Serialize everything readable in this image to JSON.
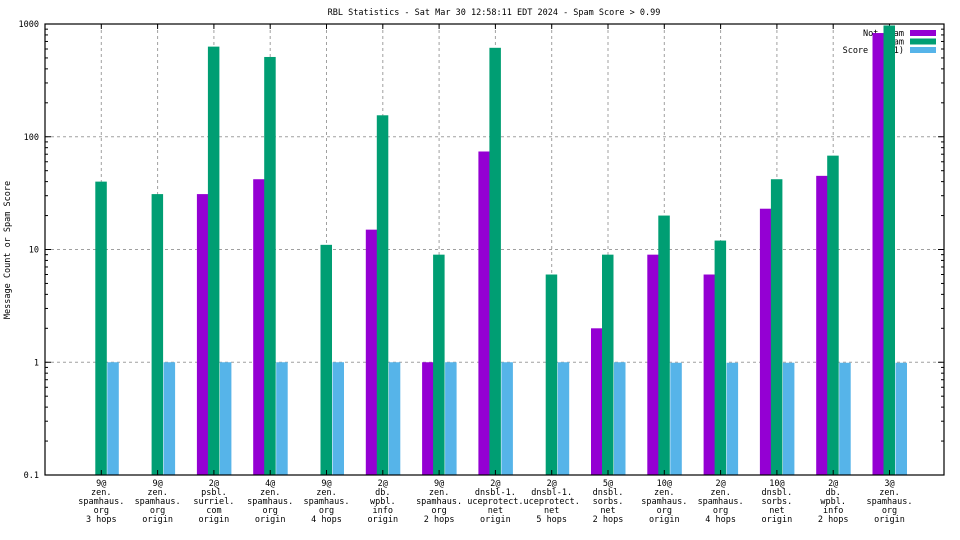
{
  "chart_data": {
    "type": "bar",
    "title": "RBL Statistics - Sat Mar 30 12:58:11 EDT 2024 - Spam Score > 0.99",
    "xlabel": "",
    "ylabel": "Message Count or Spam Score",
    "yscale": "log",
    "ylim": [
      0.1,
      1000
    ],
    "yticks": [
      {
        "value": 0.1,
        "label": "0.1"
      },
      {
        "value": 1,
        "label": "1"
      },
      {
        "value": 10,
        "label": "10"
      },
      {
        "value": 100,
        "label": "100"
      },
      {
        "value": 1000,
        "label": "1000"
      }
    ],
    "grid": true,
    "legend_position": "top-right",
    "categories": [
      [
        "9@",
        "zen.",
        "spamhaus.",
        "org",
        "3 hops"
      ],
      [
        "9@",
        "zen.",
        "spamhaus.",
        "org",
        "origin"
      ],
      [
        "2@",
        "psbl.",
        "surriel.",
        "com",
        "origin"
      ],
      [
        "4@",
        "zen.",
        "spamhaus.",
        "org",
        "origin"
      ],
      [
        "9@",
        "zen.",
        "spamhaus.",
        "org",
        "4 hops"
      ],
      [
        "2@",
        "db.",
        "wpbl.",
        "info",
        "origin"
      ],
      [
        "9@",
        "zen.",
        "spamhaus.",
        "org",
        "2 hops"
      ],
      [
        "2@",
        "dnsbl-1.",
        "uceprotect.",
        "net",
        "origin"
      ],
      [
        "2@",
        "dnsbl-1.",
        "uceprotect.",
        "net",
        "5 hops"
      ],
      [
        "5@",
        "dnsbl.",
        "sorbs.",
        "net",
        "2 hops"
      ],
      [
        "10@",
        "zen.",
        "spamhaus.",
        "org",
        "origin"
      ],
      [
        "2@",
        "zen.",
        "spamhaus.",
        "org",
        "4 hops"
      ],
      [
        "10@",
        "dnsbl.",
        "sorbs.",
        "net",
        "origin"
      ],
      [
        "2@",
        "db.",
        "wpbl.",
        "info",
        "2 hops"
      ],
      [
        "3@",
        "zen.",
        "spamhaus.",
        "org",
        "origin"
      ]
    ],
    "series": [
      {
        "name": "Not Spam",
        "color": "#9400D3",
        "values": [
          0,
          0,
          31,
          42,
          0,
          15,
          1,
          74,
          0,
          2,
          9,
          6,
          23,
          45,
          830
        ]
      },
      {
        "name": "Spam",
        "color": "#009E73",
        "values": [
          40,
          31,
          630,
          510,
          11,
          155,
          9,
          615,
          6,
          9,
          20,
          12,
          42,
          68,
          970
        ]
      },
      {
        "name": "Score (0..1)",
        "color": "#56B4E9",
        "values": [
          1,
          1,
          1,
          1,
          1,
          1,
          1,
          1,
          1,
          1,
          0.99,
          0.99,
          0.99,
          0.99,
          0.99
        ]
      }
    ]
  }
}
